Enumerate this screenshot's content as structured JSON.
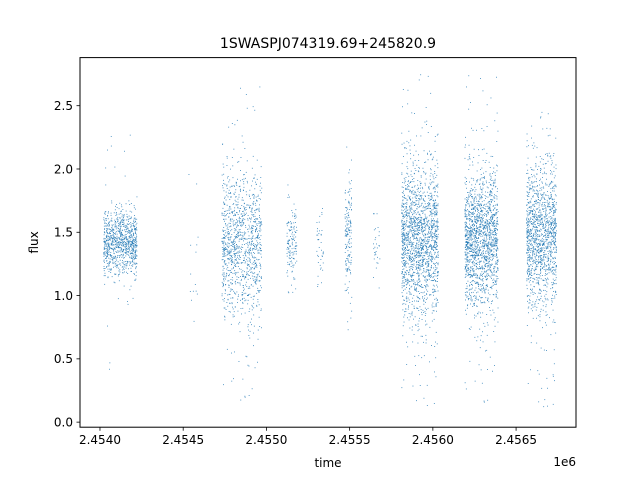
{
  "chart_data": {
    "type": "scatter",
    "title": "1SWASPJ074319.69+245820.9",
    "xlabel": "time",
    "ylabel": "flux",
    "x_offset_label": "1e6",
    "x_unit_multiplier": 1000000,
    "xlim": [
      2.45388,
      2.45686
    ],
    "ylim": [
      -0.04,
      2.88
    ],
    "x_ticks": [
      2.454,
      2.4545,
      2.455,
      2.4555,
      2.456,
      2.4565
    ],
    "x_tick_labels": [
      "2.4540",
      "2.4545",
      "2.4550",
      "2.4555",
      "2.4560",
      "2.4565"
    ],
    "y_ticks": [
      0.0,
      0.5,
      1.0,
      1.5,
      2.0,
      2.5
    ],
    "y_tick_labels": [
      "0.0",
      "0.5",
      "1.0",
      "1.5",
      "2.0",
      "2.5"
    ],
    "grid": false,
    "legend": "none",
    "marker_color": "#1f77b4",
    "marker_size": "tiny",
    "series": [
      {
        "clusters": [
          {
            "x_center": 2.45412,
            "x_halfwidth": 0.0001,
            "y_center": 1.42,
            "y_sd": 0.13,
            "y_min": 0.35,
            "y_max": 2.32,
            "count": 900
          },
          {
            "x_center": 2.45456,
            "x_halfwidth": 3e-05,
            "y_center": 1.4,
            "y_sd": 0.35,
            "y_min": 0.8,
            "y_max": 2.07,
            "count": 14
          },
          {
            "x_center": 2.45485,
            "x_halfwidth": 0.00012,
            "y_center": 1.4,
            "y_sd": 0.28,
            "y_min": 0.17,
            "y_max": 2.72,
            "count": 1100
          },
          {
            "x_center": 2.45515,
            "x_halfwidth": 3e-05,
            "y_center": 1.4,
            "y_sd": 0.14,
            "y_min": 0.9,
            "y_max": 1.9,
            "count": 140
          },
          {
            "x_center": 2.45532,
            "x_halfwidth": 2e-05,
            "y_center": 1.4,
            "y_sd": 0.18,
            "y_min": 0.6,
            "y_max": 1.85,
            "count": 40
          },
          {
            "x_center": 2.45549,
            "x_halfwidth": 2e-05,
            "y_center": 1.45,
            "y_sd": 0.22,
            "y_min": 0.4,
            "y_max": 2.33,
            "count": 160
          },
          {
            "x_center": 2.45566,
            "x_halfwidth": 2e-05,
            "y_center": 1.4,
            "y_sd": 0.15,
            "y_min": 0.85,
            "y_max": 1.65,
            "count": 30
          },
          {
            "x_center": 2.45592,
            "x_halfwidth": 0.00011,
            "y_center": 1.45,
            "y_sd": 0.3,
            "y_min": 0.09,
            "y_max": 2.78,
            "count": 1700
          },
          {
            "x_center": 2.45629,
            "x_halfwidth": 0.0001,
            "y_center": 1.45,
            "y_sd": 0.26,
            "y_min": 0.13,
            "y_max": 2.8,
            "count": 1600
          },
          {
            "x_center": 2.45665,
            "x_halfwidth": 9e-05,
            "y_center": 1.48,
            "y_sd": 0.28,
            "y_min": 0.09,
            "y_max": 2.48,
            "count": 1300
          }
        ]
      }
    ]
  }
}
